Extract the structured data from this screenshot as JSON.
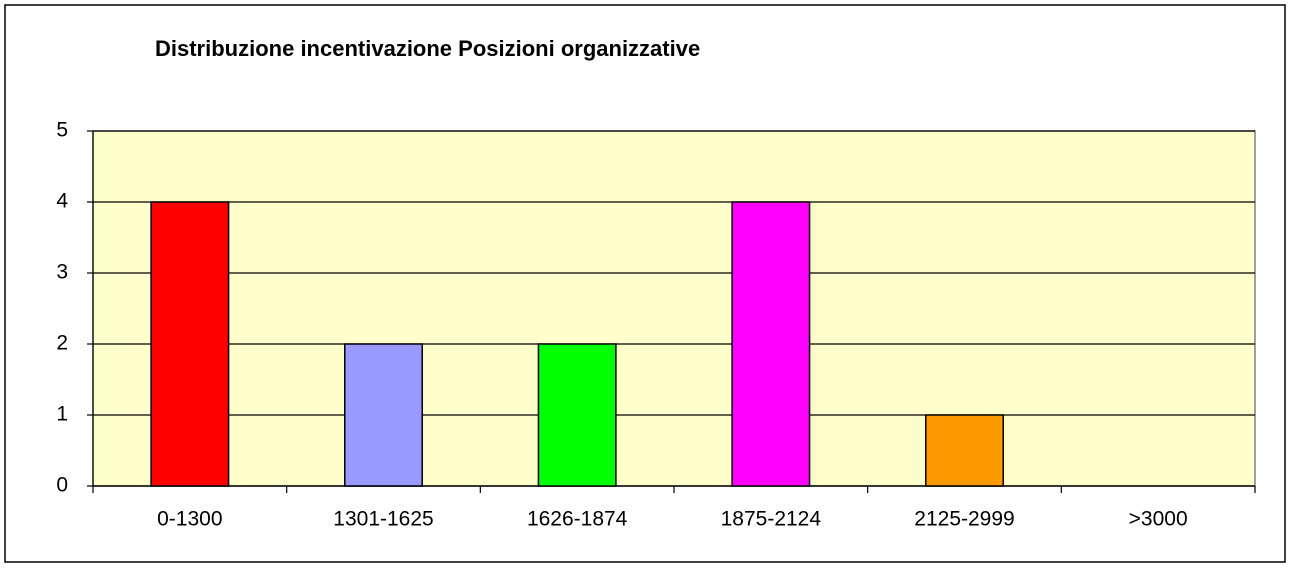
{
  "chart_data": {
    "type": "bar",
    "title": "Distribuzione incentivazione Posizioni organizzative",
    "categories": [
      "0-1300",
      "1301-1625",
      "1626-1874",
      "1875-2124",
      "2125-2999",
      ">3000"
    ],
    "values": [
      4,
      2,
      2,
      4,
      1,
      0
    ],
    "colors": [
      "#ff0000",
      "#9999ff",
      "#00ff00",
      "#ff00ff",
      "#ff9900",
      "#00ffff"
    ],
    "ylim": [
      0,
      5
    ],
    "yticks": [
      0,
      1,
      2,
      3,
      4,
      5
    ],
    "grid": true,
    "plot_background": "#ffffcc"
  }
}
